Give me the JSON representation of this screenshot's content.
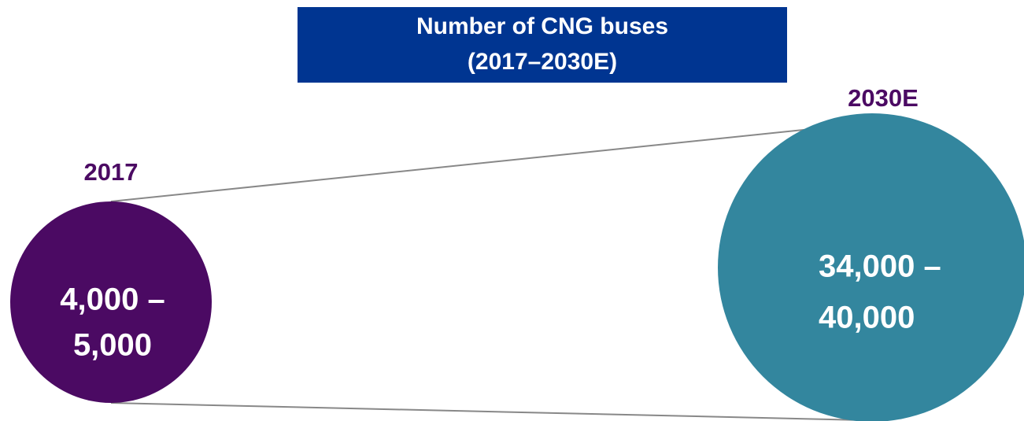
{
  "title": {
    "line1": "Number of CNG buses",
    "line2": "(2017–2030E)"
  },
  "items": [
    {
      "year": "2017",
      "value": {
        "line1": "4,000 –",
        "line2": "5,000"
      }
    },
    {
      "year": "2030E",
      "value": {
        "line1": "34,000 –",
        "line2": "40,000"
      }
    }
  ]
}
